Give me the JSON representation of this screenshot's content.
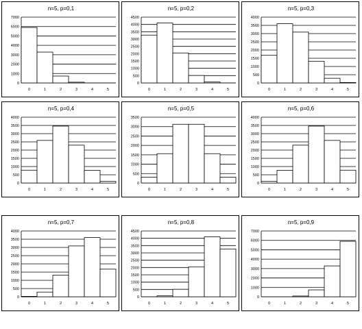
{
  "chart_data": [
    {
      "type": "bar",
      "title": "n=5, p=0,1",
      "categories": [
        "0",
        "1",
        "2",
        "3",
        "4",
        "5"
      ],
      "values": [
        5900,
        3280,
        730,
        80,
        5,
        0
      ],
      "ylim": [
        0,
        7000
      ],
      "yticks": [
        "0",
        "1000",
        "2000",
        "3000",
        "4000",
        "5000",
        "6000",
        "7000"
      ],
      "grid": true
    },
    {
      "type": "bar",
      "title": "n=5, p=0,2",
      "categories": [
        "0",
        "1",
        "2",
        "3",
        "4",
        "5"
      ],
      "values": [
        3270,
        4100,
        2050,
        510,
        64,
        3
      ],
      "ylim": [
        0,
        4500
      ],
      "yticks": [
        "0",
        "500",
        "1000",
        "1500",
        "2000",
        "2500",
        "3000",
        "3500",
        "4000",
        "4500"
      ],
      "grid": true
    },
    {
      "type": "bar",
      "title": "n=5, p=0,3",
      "categories": [
        "0",
        "1",
        "2",
        "3",
        "4",
        "5"
      ],
      "values": [
        1680,
        3600,
        3090,
        1320,
        285,
        25
      ],
      "ylim": [
        0,
        4000
      ],
      "yticks": [
        "0",
        "500",
        "1000",
        "1500",
        "2000",
        "2500",
        "3000",
        "3500",
        "4000"
      ],
      "grid": true
    },
    {
      "type": "bar",
      "title": "n=5, p=0,4",
      "categories": [
        "0",
        "1",
        "2",
        "3",
        "4",
        "5"
      ],
      "values": [
        780,
        2590,
        3460,
        2300,
        770,
        100
      ],
      "ylim": [
        0,
        4000
      ],
      "yticks": [
        "0",
        "500",
        "1000",
        "1500",
        "2000",
        "2500",
        "3000",
        "3500",
        "4000"
      ],
      "grid": true
    },
    {
      "type": "bar",
      "title": "n=5, p=0,5",
      "categories": [
        "0",
        "1",
        "2",
        "3",
        "4",
        "5"
      ],
      "values": [
        310,
        1560,
        3125,
        3125,
        1560,
        310
      ],
      "ylim": [
        0,
        3500
      ],
      "yticks": [
        "0",
        "500",
        "1000",
        "1500",
        "2000",
        "2500",
        "3000",
        "3500"
      ],
      "grid": true
    },
    {
      "type": "bar",
      "title": "n=5, p=0,6",
      "categories": [
        "0",
        "1",
        "2",
        "3",
        "4",
        "5"
      ],
      "values": [
        100,
        770,
        2300,
        3460,
        2590,
        780
      ],
      "ylim": [
        0,
        4000
      ],
      "yticks": [
        "0",
        "500",
        "1000",
        "1500",
        "2000",
        "2500",
        "3000",
        "3500",
        "4000"
      ],
      "grid": true
    },
    {
      "type": "bar",
      "title": "n=5, p=0,7",
      "categories": [
        "0",
        "1",
        "2",
        "3",
        "4",
        "5"
      ],
      "values": [
        25,
        285,
        1320,
        3090,
        3600,
        1680
      ],
      "ylim": [
        0,
        4000
      ],
      "yticks": [
        "0",
        "500",
        "1000",
        "1500",
        "2000",
        "2500",
        "3000",
        "3500",
        "4000"
      ],
      "grid": true
    },
    {
      "type": "bar",
      "title": "n=5, p=0,8",
      "categories": [
        "0",
        "1",
        "2",
        "3",
        "4",
        "5"
      ],
      "values": [
        3,
        64,
        510,
        2050,
        4100,
        3270
      ],
      "ylim": [
        0,
        4500
      ],
      "yticks": [
        "0",
        "500",
        "1000",
        "1500",
        "2000",
        "2500",
        "3000",
        "3500",
        "4000",
        "4500"
      ],
      "grid": true
    },
    {
      "type": "bar",
      "title": "n=5, p=0,9",
      "categories": [
        "0",
        "1",
        "2",
        "3",
        "4",
        "5"
      ],
      "values": [
        0,
        5,
        80,
        730,
        3280,
        5900
      ],
      "ylim": [
        0,
        7000
      ],
      "yticks": [
        "0",
        "1000",
        "2000",
        "3000",
        "4000",
        "5000",
        "6000",
        "7000"
      ],
      "grid": true
    }
  ]
}
